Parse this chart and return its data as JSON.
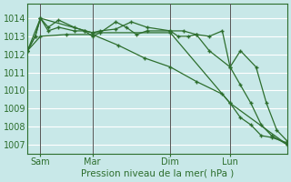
{
  "xlabel": "Pression niveau de la mer( hPa )",
  "bg_color": "#c8e8e8",
  "grid_color": "#ffffff",
  "line_color": "#2d6e2d",
  "ylim": [
    1006.5,
    1014.8
  ],
  "xlim": [
    0,
    100
  ],
  "yticks": [
    1007,
    1008,
    1009,
    1010,
    1011,
    1012,
    1013,
    1014
  ],
  "xtick_positions": [
    5,
    25,
    55,
    78
  ],
  "xtick_labels": [
    "Sam",
    "Mar",
    "Dim",
    "Lun"
  ],
  "vlines": [
    5,
    25,
    55,
    78
  ],
  "line1_x": [
    0,
    5,
    25,
    55,
    78,
    100
  ],
  "line1_y": [
    1012.2,
    1014.0,
    1013.2,
    1013.2,
    1009.3,
    1007.0
  ],
  "line2_x": [
    0,
    3,
    5,
    8,
    12,
    18,
    22,
    25,
    28,
    34,
    40,
    46,
    55,
    60,
    65,
    70,
    75,
    78,
    82,
    88,
    92,
    96,
    100
  ],
  "line2_y": [
    1012.2,
    1013.0,
    1014.0,
    1013.5,
    1013.9,
    1013.5,
    1013.3,
    1013.2,
    1013.3,
    1013.4,
    1013.8,
    1013.5,
    1013.3,
    1013.3,
    1013.1,
    1013.0,
    1013.3,
    1011.3,
    1012.2,
    1011.3,
    1009.3,
    1007.8,
    1007.2
  ],
  "line3_x": [
    0,
    3,
    5,
    8,
    12,
    18,
    22,
    25,
    28,
    34,
    38,
    42,
    46,
    55,
    58,
    62,
    65,
    70,
    78,
    82,
    86,
    90,
    94,
    100
  ],
  "line3_y": [
    1012.2,
    1013.0,
    1014.0,
    1013.3,
    1013.5,
    1013.3,
    1013.3,
    1013.0,
    1013.2,
    1013.8,
    1013.5,
    1013.1,
    1013.3,
    1013.3,
    1013.0,
    1013.0,
    1013.1,
    1012.2,
    1011.3,
    1010.3,
    1009.3,
    1008.1,
    1007.5,
    1007.0
  ],
  "line4_x": [
    0,
    5,
    15,
    25,
    35,
    45,
    55,
    65,
    75,
    78,
    82,
    86,
    90,
    94,
    100
  ],
  "line4_y": [
    1012.2,
    1013.0,
    1013.1,
    1013.1,
    1012.5,
    1011.8,
    1011.3,
    1010.5,
    1009.8,
    1009.3,
    1008.5,
    1008.1,
    1007.5,
    1007.4,
    1007.1
  ],
  "marker_size": 3.5,
  "line_width": 0.9
}
